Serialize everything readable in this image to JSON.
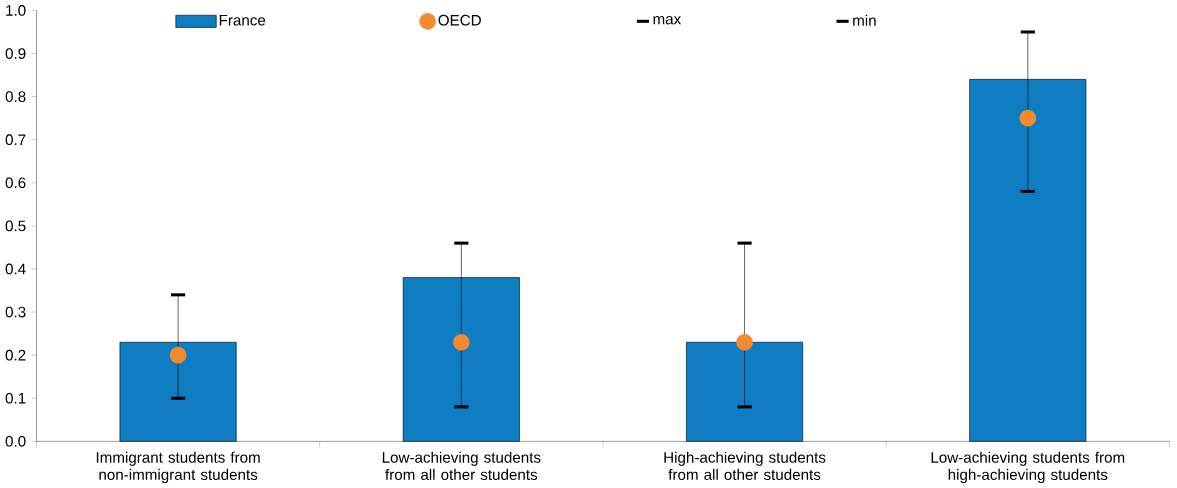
{
  "chart_data": {
    "type": "bar",
    "categories": [
      "Immigrant students from non-immigrant students",
      "Low-achieving students from all other students",
      "High-achieving students from all other students",
      "Low-achieving students from high-achieving students"
    ],
    "series": [
      {
        "name": "France",
        "type": "bar",
        "color": "#0e7dc2",
        "values": [
          0.23,
          0.38,
          0.23,
          0.84
        ]
      },
      {
        "name": "OECD",
        "type": "scatter",
        "marker": "circle",
        "color": "#f28a2e",
        "values": [
          0.2,
          0.23,
          0.23,
          0.75
        ],
        "errors": [
          [
            0.1,
            0.34
          ],
          [
            0.08,
            0.46
          ],
          [
            0.08,
            0.46
          ],
          [
            0.58,
            0.95
          ]
        ]
      }
    ],
    "annotations": [
      "max",
      "min"
    ],
    "ylim": [
      0,
      1
    ],
    "yticks": [
      {
        "value": 0,
        "label": "0.0"
      },
      {
        "value": 0.1,
        "label": "0.1"
      },
      {
        "value": 0.2,
        "label": "0.2"
      },
      {
        "value": 0.3,
        "label": "0.3"
      },
      {
        "value": 0.4,
        "label": "0.4"
      },
      {
        "value": 0.5,
        "label": "0.5"
      },
      {
        "value": 0.6,
        "label": "0.6"
      },
      {
        "value": 0.7,
        "label": "0.7"
      },
      {
        "value": 0.8,
        "label": "0.8"
      },
      {
        "value": 0.9,
        "label": "0.9"
      },
      {
        "value": 1,
        "label": "1.0"
      }
    ],
    "legend": "top",
    "grid": false
  }
}
